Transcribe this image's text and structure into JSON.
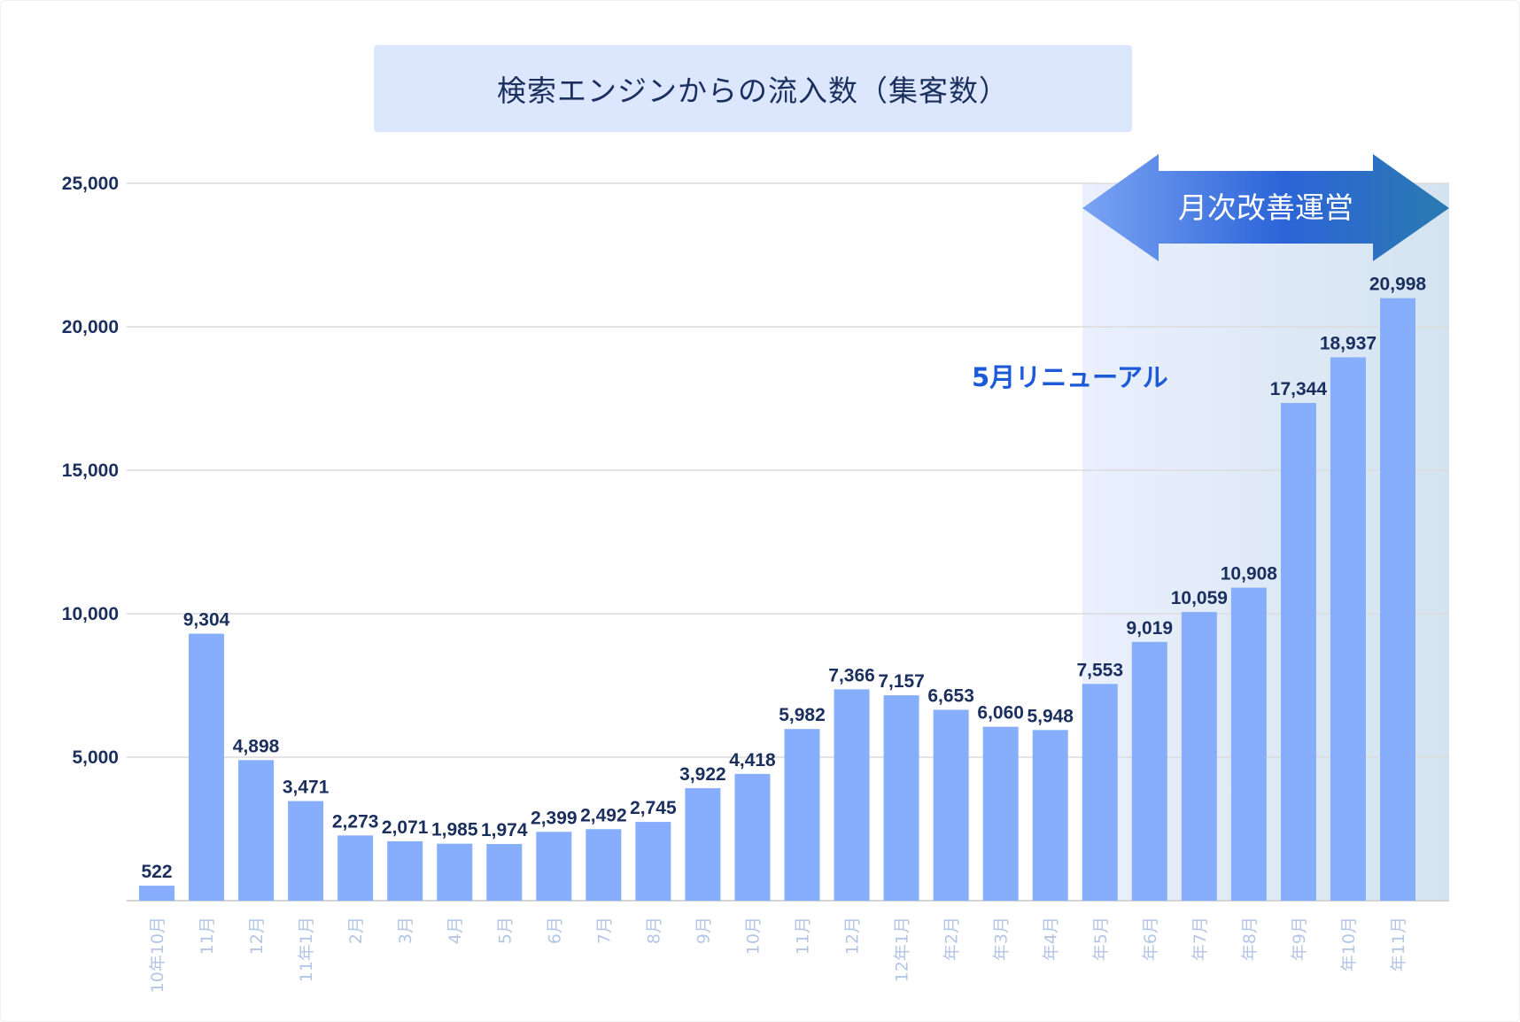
{
  "chart_data": {
    "type": "bar",
    "title": "検索エンジンからの流入数（集客数）",
    "categories": [
      "10年10月",
      "11月",
      "12月",
      "11年1月",
      "2月",
      "3月",
      "4月",
      "5月",
      "6月",
      "7月",
      "8月",
      "9月",
      "10月",
      "11月",
      "12月",
      "12年1月",
      "年2月",
      "年3月",
      "年4月",
      "年5月",
      "年6月",
      "年7月",
      "年8月",
      "年9月",
      "年10月",
      "年11月"
    ],
    "values": [
      522,
      9304,
      4898,
      3471,
      2273,
      2071,
      1985,
      1974,
      2399,
      2492,
      2745,
      3922,
      4418,
      5982,
      7366,
      7157,
      6653,
      6060,
      5948,
      7553,
      9019,
      10059,
      10908,
      17344,
      18937,
      20998
    ],
    "data_labels": [
      "522",
      "9,304",
      "4,898",
      "3,471",
      "2,273",
      "2,071",
      "1,985",
      "1,974",
      "2,399",
      "2,492",
      "2,745",
      "3,922",
      "4,418",
      "5,982",
      "7,366",
      "7,157",
      "6,653",
      "6,060",
      "5,948",
      "7,553",
      "9,019",
      "10,059",
      "10,908",
      "17,344",
      "18,937",
      "20,998"
    ],
    "ylim": [
      0,
      25000
    ],
    "yticks": [
      5000,
      10000,
      15000,
      20000,
      25000
    ],
    "ytick_labels": [
      "5,000",
      "10,000",
      "15,000",
      "20,000",
      "25,000"
    ],
    "xlabel": "",
    "ylabel": "",
    "grid": true,
    "colors": {
      "bar": "#87aefc",
      "label": "#1b2f5e",
      "axis_label": "#b4c6e6",
      "highlight_region": "#dbe5f5",
      "annotation": "#1d5ad8"
    },
    "annotations": {
      "highlight_start_category_index": 19,
      "arrow_text": "月次改善運営",
      "renewal_text": "5月リニューアル"
    }
  }
}
